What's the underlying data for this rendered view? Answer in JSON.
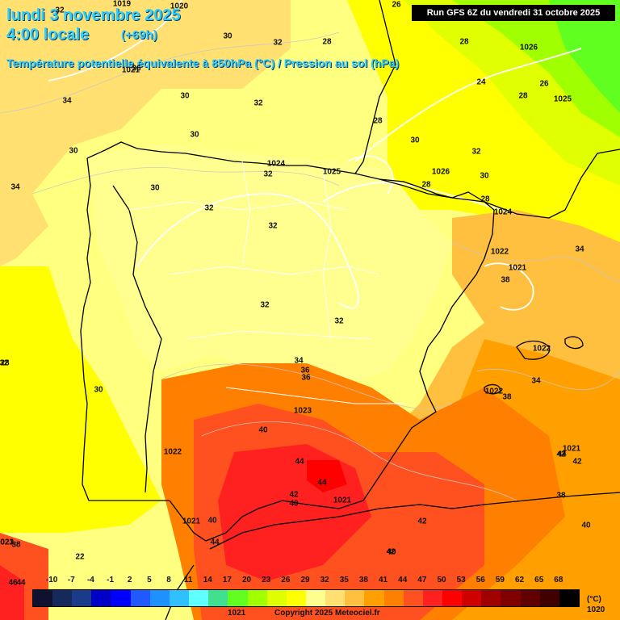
{
  "header": {
    "title_line1": "lundi 3 novembre 2025",
    "title_line2": "4:00 locale",
    "lead_time": "(+69h)",
    "subtitle": "Température potentielle équivalente à 850hPa (°C) / Pression au sol (hPa)",
    "run_info": "Run GFS 6Z du vendredi 31 octobre 2025"
  },
  "legend": {
    "unit": "(°C)",
    "ticks": [
      "-10",
      "-7",
      "-4",
      "-1",
      "2",
      "5",
      "8",
      "11",
      "14",
      "17",
      "20",
      "23",
      "26",
      "29",
      "32",
      "35",
      "38",
      "41",
      "44",
      "47",
      "50",
      "53",
      "56",
      "59",
      "62",
      "65",
      "68"
    ],
    "colors": [
      "#101030",
      "#152a5a",
      "#1a3a8a",
      "#0000c8",
      "#0000ff",
      "#1e5aff",
      "#1e90ff",
      "#30c0ff",
      "#60ffff",
      "#40e090",
      "#60ff20",
      "#a0ff00",
      "#e0ff00",
      "#ffff00",
      "#ffff90",
      "#ffe070",
      "#ffc040",
      "#ffa000",
      "#ff8000",
      "#ff5020",
      "#ff2020",
      "#ff0000",
      "#d00000",
      "#a00000",
      "#800000",
      "#600000",
      "#400000",
      "#000000"
    ]
  },
  "footer": {
    "copyright": "Copyright 2025 Meteociel.fr",
    "pressure_bottom_left": "1021",
    "pressure_bottom_right": "1020"
  },
  "temperature_labels": [
    "32",
    "30",
    "32",
    "28",
    "26",
    "28",
    "24",
    "26",
    "28",
    "30",
    "32",
    "32",
    "30",
    "34",
    "36",
    "30",
    "30",
    "28",
    "28",
    "30",
    "28",
    "32",
    "32",
    "32",
    "30",
    "34",
    "32",
    "38",
    "36",
    "34",
    "32",
    "34",
    "36",
    "38",
    "38",
    "40",
    "44",
    "44",
    "42",
    "40",
    "40",
    "42",
    "42",
    "42",
    "44",
    "44",
    "38",
    "40",
    "42",
    "40",
    "32",
    "46",
    "44",
    "30",
    "28",
    "22",
    "34"
  ],
  "pressure_labels": [
    "1019",
    "1020",
    "1021",
    "1026",
    "1025",
    "1024",
    "1025",
    "1026",
    "1024",
    "1022",
    "1021",
    "1022",
    "1022",
    "1023",
    "1022",
    "1021",
    "1021",
    "1021",
    "1021",
    "1023"
  ]
}
